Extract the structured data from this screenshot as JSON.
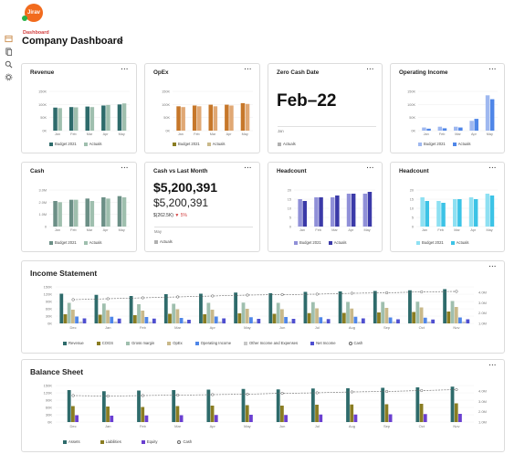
{
  "app": {
    "logo_text": "Jirav",
    "breadcrumb": "Dashboard",
    "title": "Company Dashboard"
  },
  "rail": {
    "icons": [
      "panel-icon",
      "document-icon",
      "search-icon",
      "gear-icon"
    ]
  },
  "colors": {
    "teal": "#2e6b6b",
    "navy": "#3b3aa8",
    "blue": "#4f86e8",
    "lightblue": "#9fb8f0",
    "orange": "#d67a2a",
    "olive": "#8a7d22",
    "sage": "#9fbfae",
    "beige": "#c9b98a",
    "gray": "#b0b0b0",
    "purple": "#6a3fd0",
    "tan": "#c8b08a",
    "cyan": "#3cc3e6"
  },
  "cards": {
    "revenue": {
      "title": "Revenue",
      "more": "···",
      "legend": [
        {
          "label": "Budget 2021",
          "color": "#2e6b6b"
        },
        {
          "label": "Actuals",
          "color": "#9fbfae"
        }
      ]
    },
    "opex": {
      "title": "OpEx",
      "more": "···",
      "legend": [
        {
          "label": "Budget 2021",
          "color": "#8a7d22"
        },
        {
          "label": "Actuals",
          "color": "#c9b98a"
        }
      ]
    },
    "zero_cash": {
      "title": "Zero Cash Date",
      "more": "···",
      "value": "Feb–22",
      "axis_start": "Jan",
      "legend": [
        {
          "label": "Actuals",
          "color": "#b0b0b0"
        }
      ]
    },
    "operating_income": {
      "title": "Operating Income",
      "more": "···",
      "legend": [
        {
          "label": "Budget 2021",
          "color": "#9fb8f0"
        },
        {
          "label": "Actuals",
          "color": "#4f86e8"
        }
      ]
    },
    "cash": {
      "title": "Cash",
      "more": "···",
      "legend": [
        {
          "label": "Budget 2021",
          "color": "#6b8f86"
        },
        {
          "label": "Actuals",
          "color": "#9fbfae"
        }
      ]
    },
    "cash_vs_last": {
      "title": "Cash vs Last Month",
      "more": "···",
      "value": "$5,200,391",
      "sub_value": "$5,200,391",
      "delta_amount": "$(262.5K)",
      "delta_pct": "5%",
      "axis_start": "May",
      "legend": [
        {
          "label": "Actuals",
          "color": "#b0b0b0"
        }
      ]
    },
    "headcount1": {
      "title": "Headcount",
      "more": "···",
      "legend": [
        {
          "label": "Budget 2021",
          "color": "#9090d8"
        },
        {
          "label": "Actuals",
          "color": "#3b3aa8"
        }
      ]
    },
    "headcount2": {
      "title": "Headcount",
      "more": "···",
      "legend": [
        {
          "label": "Budget 2021",
          "color": "#8ee0f2"
        },
        {
          "label": "Actuals",
          "color": "#3cc3e6"
        }
      ]
    },
    "income_statement": {
      "title": "Income Statement",
      "more": "···",
      "legend": [
        {
          "label": "Revenue",
          "color": "#2e6b6b"
        },
        {
          "label": "COGS",
          "color": "#8a7d22"
        },
        {
          "label": "Gross margin",
          "color": "#9fbfae"
        },
        {
          "label": "OpEx",
          "color": "#c9b98a"
        },
        {
          "label": "Operating Income",
          "color": "#4f86e8"
        },
        {
          "label": "Other Income and Expenses",
          "color": "#c8c8c8"
        },
        {
          "label": "Net Income",
          "color": "#4f4fd0"
        },
        {
          "label": "Cash",
          "color": "#666666"
        }
      ]
    },
    "balance_sheet": {
      "title": "Balance Sheet",
      "more": "···",
      "legend": [
        {
          "label": "Assets",
          "color": "#2e6b6b"
        },
        {
          "label": "Liabilities",
          "color": "#8a7d22"
        },
        {
          "label": "Equity",
          "color": "#6a3fd0"
        },
        {
          "label": "Cash",
          "color": "#666666"
        }
      ]
    }
  },
  "chart_data": [
    {
      "id": "revenue",
      "type": "bar",
      "categories": [
        "Jan",
        "Feb",
        "Mar",
        "Apr",
        "May"
      ],
      "series": [
        {
          "name": "Budget 2021",
          "values": [
            88,
            90,
            92,
            96,
            100
          ]
        },
        {
          "name": "Actuals",
          "values": [
            86,
            89,
            90,
            98,
            104
          ]
        }
      ],
      "ytick_labels": [
        "150K",
        "100K",
        "50K",
        "0K"
      ],
      "ylim": [
        0,
        150
      ]
    },
    {
      "id": "opex",
      "type": "bar",
      "categories": [
        "Jan",
        "Feb",
        "Mar",
        "Apr",
        "May"
      ],
      "series": [
        {
          "name": "Budget 2021",
          "values": [
            62,
            64,
            66,
            66,
            70
          ]
        },
        {
          "name": "Actuals",
          "values": [
            60,
            62,
            62,
            64,
            68
          ]
        }
      ],
      "ytick_labels": [
        "150K",
        "100K",
        "50K",
        "0K"
      ],
      "ylim": [
        0,
        100
      ]
    },
    {
      "id": "operating_income",
      "type": "bar",
      "categories": [
        "Jan",
        "Feb",
        "Mar",
        "Apr",
        "May"
      ],
      "series": [
        {
          "name": "Budget 2021",
          "values": [
            8,
            10,
            10,
            25,
            90
          ]
        },
        {
          "name": "Actuals",
          "values": [
            5,
            6,
            8,
            30,
            80
          ]
        }
      ],
      "ytick_labels": [
        "150K",
        "100K",
        "50K",
        "0K"
      ],
      "ylim": [
        0,
        100
      ]
    },
    {
      "id": "cash",
      "type": "bar",
      "categories": [
        "Jan",
        "Feb",
        "Mar",
        "Apr",
        "May"
      ],
      "series": [
        {
          "name": "Budget 2021",
          "values": [
            2.1,
            2.2,
            2.3,
            2.4,
            2.5
          ]
        },
        {
          "name": "Actuals",
          "values": [
            2.0,
            2.2,
            2.1,
            2.3,
            2.4
          ]
        }
      ],
      "ytick_labels": [
        "3.0M",
        "2.0M",
        "1.0M",
        "0"
      ],
      "ylim": [
        0,
        3
      ]
    },
    {
      "id": "headcount1",
      "type": "bar",
      "categories": [
        "Jan",
        "Feb",
        "Mar",
        "Apr",
        "May"
      ],
      "series": [
        {
          "name": "Budget 2021",
          "values": [
            15,
            16,
            16,
            18,
            18
          ]
        },
        {
          "name": "Actuals",
          "values": [
            14,
            16,
            17,
            18,
            19
          ]
        }
      ],
      "ytick_labels": [
        "20",
        "15",
        "10",
        "5",
        "0"
      ],
      "ylim": [
        0,
        20
      ]
    },
    {
      "id": "headcount2",
      "type": "bar",
      "categories": [
        "Jan",
        "Feb",
        "Mar",
        "Apr",
        "May"
      ],
      "series": [
        {
          "name": "Budget 2021",
          "values": [
            16,
            14,
            15,
            16,
            18
          ]
        },
        {
          "name": "Actuals",
          "values": [
            14,
            13,
            15,
            15,
            17
          ]
        }
      ],
      "ytick_labels": [
        "20",
        "15",
        "10",
        "5",
        "0"
      ],
      "ylim": [
        0,
        20
      ]
    },
    {
      "id": "income_statement",
      "type": "bar",
      "categories": [
        "Dec",
        "Jan",
        "Feb",
        "Mar",
        "Apr",
        "May",
        "Jun",
        "Jul",
        "Aug",
        "Sep",
        "Oct",
        "Nov"
      ],
      "series": [
        {
          "name": "Revenue",
          "values": [
            130,
            125,
            120,
            128,
            130,
            135,
            132,
            138,
            140,
            142,
            145,
            150
          ]
        },
        {
          "name": "COGS",
          "values": [
            40,
            38,
            36,
            42,
            40,
            44,
            42,
            45,
            46,
            48,
            50,
            52
          ]
        },
        {
          "name": "Gross margin",
          "values": [
            90,
            87,
            84,
            86,
            90,
            91,
            90,
            93,
            94,
            94,
            95,
            98
          ]
        },
        {
          "name": "OpEx",
          "values": [
            60,
            58,
            56,
            62,
            60,
            64,
            62,
            66,
            65,
            68,
            70,
            72
          ]
        },
        {
          "name": "Operating Income",
          "values": [
            30,
            29,
            28,
            24,
            30,
            27,
            28,
            27,
            29,
            26,
            25,
            26
          ]
        },
        {
          "name": "Other Income and Expenses",
          "values": [
            8,
            8,
            7,
            8,
            8,
            7,
            8,
            8,
            7,
            8,
            8,
            8
          ]
        },
        {
          "name": "Net Income",
          "values": [
            22,
            21,
            21,
            16,
            22,
            20,
            20,
            19,
            22,
            18,
            17,
            18
          ]
        }
      ],
      "line": {
        "name": "Cash",
        "values": [
          2.6,
          2.7,
          2.8,
          2.9,
          3.0,
          3.1,
          3.15,
          3.2,
          3.3,
          3.35,
          3.45,
          3.5
        ]
      },
      "ytick_labels": [
        "150K",
        "120K",
        "90K",
        "60K",
        "30K",
        "0K"
      ],
      "ylim": [
        0,
        160
      ],
      "y2tick_labels": [
        "4.0M",
        "3.0M",
        "2.0M",
        "1.0M"
      ],
      "y2lim": [
        0,
        4
      ]
    },
    {
      "id": "balance_sheet",
      "type": "bar",
      "categories": [
        "Dec",
        "Jan",
        "Feb",
        "Mar",
        "Apr",
        "May",
        "Jun",
        "Jul",
        "Aug",
        "Sep",
        "Oct",
        "Nov"
      ],
      "series": [
        {
          "name": "Assets",
          "values": [
            140,
            135,
            138,
            140,
            142,
            145,
            143,
            147,
            148,
            150,
            152,
            155
          ]
        },
        {
          "name": "Liabilities",
          "values": [
            70,
            68,
            66,
            70,
            72,
            74,
            72,
            76,
            77,
            78,
            80,
            82
          ]
        },
        {
          "name": "Equity",
          "values": [
            30,
            28,
            29,
            30,
            31,
            32,
            31,
            33,
            33,
            34,
            35,
            36
          ]
        }
      ],
      "line": {
        "name": "Cash",
        "values": [
          2.9,
          2.85,
          2.9,
          2.95,
          3.0,
          3.05,
          3.15,
          3.2,
          3.3,
          3.35,
          3.45,
          3.55
        ]
      },
      "ytick_labels": [
        "150K",
        "120K",
        "90K",
        "60K",
        "30K",
        "0K"
      ],
      "ylim": [
        0,
        160
      ],
      "y2tick_labels": [
        "4.0M",
        "3.0M",
        "2.0M",
        "1.0M"
      ],
      "y2lim": [
        0,
        4
      ]
    }
  ]
}
